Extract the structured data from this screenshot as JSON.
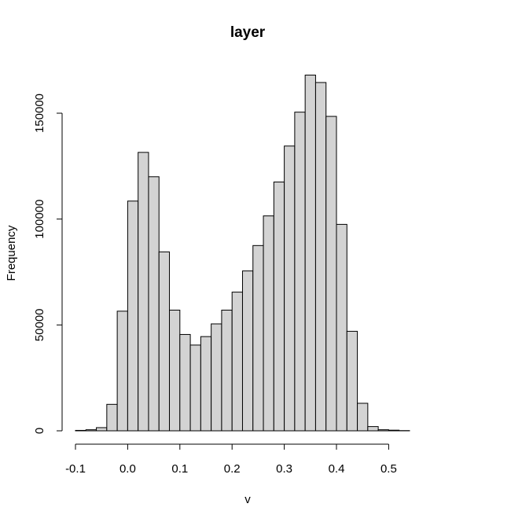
{
  "chart_data": {
    "type": "bar",
    "title": "layer",
    "xlabel": "v",
    "ylabel": "Frequency",
    "bar_color": "#d3d3d3",
    "border_color": "#000000",
    "xlim": [
      -0.1,
      0.55
    ],
    "ylim": [
      0,
      170000
    ],
    "x_ticks": [
      -0.1,
      0.0,
      0.1,
      0.2,
      0.3,
      0.4,
      0.5
    ],
    "x_tick_labels": [
      "-0.1",
      "0.0",
      "0.1",
      "0.2",
      "0.3",
      "0.4",
      "0.5"
    ],
    "y_ticks": [
      0,
      50000,
      100000,
      150000
    ],
    "y_tick_labels": [
      "0",
      "50000",
      "100000",
      "150000"
    ],
    "bin_width": 0.02,
    "bins_start": [
      -0.1,
      -0.08,
      -0.06,
      -0.04,
      -0.02,
      0.0,
      0.02,
      0.04,
      0.06,
      0.08,
      0.1,
      0.12,
      0.14,
      0.16,
      0.18,
      0.2,
      0.22,
      0.24,
      0.26,
      0.28,
      0.3,
      0.32,
      0.34,
      0.36,
      0.38,
      0.4,
      0.42,
      0.44,
      0.46,
      0.48,
      0.5,
      0.52
    ],
    "values": [
      200,
      500,
      1500,
      12500,
      56500,
      108500,
      131500,
      120000,
      84500,
      57000,
      45500,
      40500,
      44500,
      50500,
      57000,
      65500,
      75500,
      87500,
      101500,
      117500,
      134500,
      150500,
      168000,
      164500,
      148500,
      97500,
      47000,
      13000,
      2000,
      500,
      300,
      100
    ]
  }
}
